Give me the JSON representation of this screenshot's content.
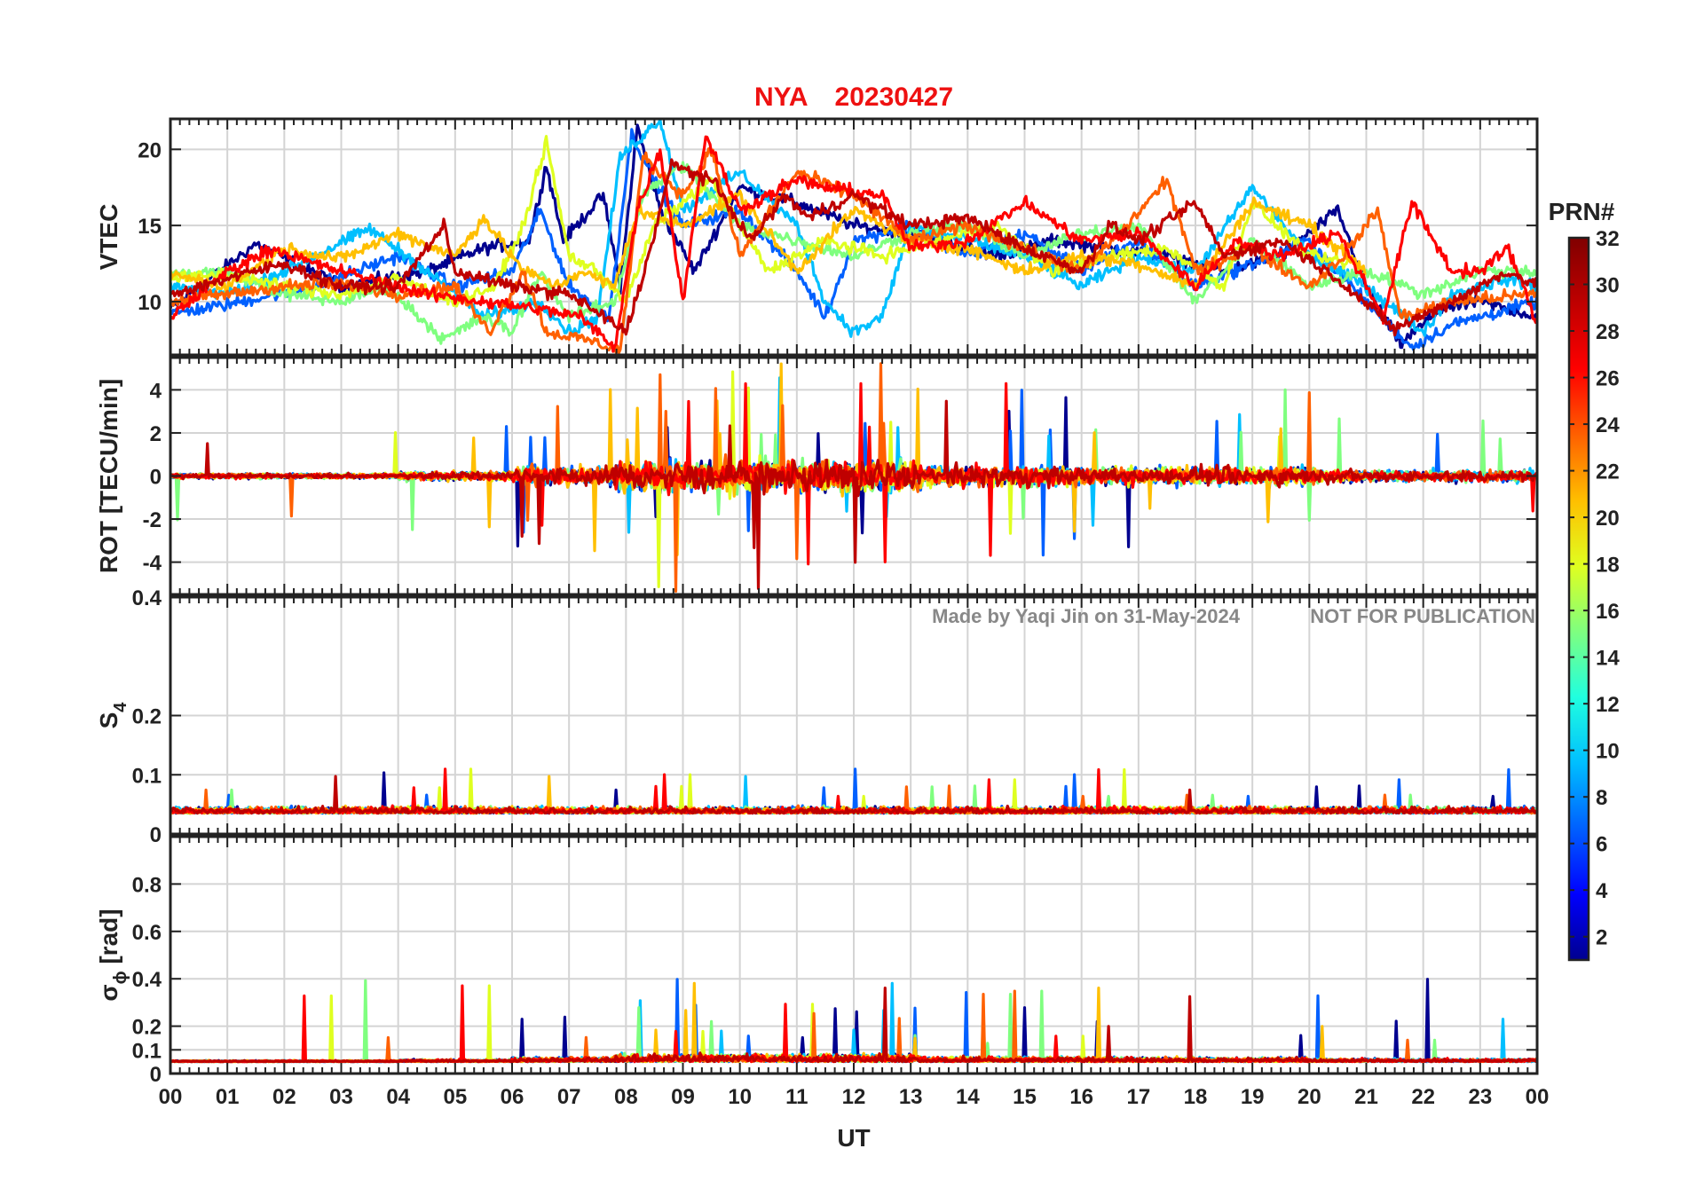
{
  "chart_data": {
    "type": "line",
    "title_station": "NYA",
    "title_date": "20230427",
    "xlabel": "UT",
    "x_range": [
      0,
      24
    ],
    "x_tick_labels": [
      "00",
      "01",
      "02",
      "03",
      "04",
      "05",
      "06",
      "07",
      "08",
      "09",
      "10",
      "11",
      "12",
      "13",
      "14",
      "15",
      "16",
      "17",
      "18",
      "19",
      "20",
      "21",
      "22",
      "23",
      "00"
    ],
    "grid": true,
    "watermark_left": "Made by Yaqi Jin on 31-May-2024",
    "watermark_right": "NOT FOR PUBLICATION",
    "colorbar": {
      "label": "PRN#",
      "range": [
        1,
        32
      ],
      "colormap": "jet",
      "ticks": [
        "2",
        "4",
        "6",
        "8",
        "10",
        "12",
        "14",
        "16",
        "18",
        "20",
        "22",
        "24",
        "26",
        "28",
        "30",
        "32"
      ]
    },
    "panels": [
      {
        "id": "vtec",
        "ylabel": "VTEC",
        "ylim": [
          6.5,
          22
        ],
        "yticks": [
          10,
          15,
          20
        ],
        "ytick_labels": [
          "10",
          "15",
          "20"
        ]
      },
      {
        "id": "rot",
        "ylabel": "ROT [TECU/min]",
        "ylim": [
          -5.5,
          5.5
        ],
        "yticks": [
          -4,
          -2,
          0,
          2,
          4
        ],
        "ytick_labels": [
          "-4",
          "-2",
          "0",
          "2",
          "4"
        ]
      },
      {
        "id": "s4",
        "ylabel_main": "S",
        "ylabel_sub": "4",
        "ylim": [
          0,
          0.4
        ],
        "yticks": [
          0,
          0.1,
          0.2,
          0.4
        ],
        "ytick_labels": [
          "0",
          "0.1",
          "0.2",
          "0.4"
        ]
      },
      {
        "id": "sigma",
        "ylabel_main": "σ",
        "ylabel_sub": "ϕ",
        "ylabel_unit": " [rad]",
        "ylim": [
          0,
          1.0
        ],
        "yticks": [
          0,
          0.1,
          0.2,
          0.4,
          0.6,
          0.8
        ],
        "ytick_labels": [
          "0",
          "0.1",
          "0.2",
          "0.4",
          "0.6",
          "0.8"
        ]
      }
    ],
    "series_colors": [
      "#00008f",
      "#0000ff",
      "#0060ff",
      "#00bfff",
      "#20ffdf",
      "#7fff7f",
      "#dfff20",
      "#ffbf00",
      "#ff6000",
      "#ff0000",
      "#bf0000",
      "#800000"
    ],
    "series": [
      {
        "name": "",
        "prn": 3,
        "vtec": [
          [
            0,
            9.5
          ],
          [
            1.5,
            13.8
          ],
          [
            3,
            11
          ],
          [
            4.5,
            12
          ],
          [
            5.5,
            13.5
          ],
          [
            6.3,
            14
          ],
          [
            6.6,
            19
          ],
          [
            6.9,
            14
          ],
          [
            7.6,
            17
          ],
          [
            7.9,
            11
          ],
          [
            8.2,
            21.5
          ],
          [
            8.6,
            16
          ],
          [
            9.2,
            12
          ],
          [
            10,
            17.5
          ],
          [
            11,
            16.5
          ],
          [
            12,
            15
          ],
          [
            13,
            14.5
          ],
          [
            14.5,
            13
          ],
          [
            15.5,
            14
          ],
          [
            16.5,
            13.5
          ],
          [
            17.5,
            13
          ],
          [
            18.5,
            12
          ],
          [
            19.5,
            13
          ],
          [
            20.5,
            16
          ],
          [
            21,
            11
          ],
          [
            21.6,
            7.2
          ],
          [
            22.3,
            9.5
          ],
          [
            23,
            10
          ],
          [
            24,
            9
          ]
        ]
      },
      {
        "name": "",
        "prn": 7,
        "vtec": [
          [
            0,
            9.2
          ],
          [
            1,
            9.8
          ],
          [
            2.5,
            11
          ],
          [
            4,
            13
          ],
          [
            5,
            11
          ],
          [
            6,
            12
          ],
          [
            6.5,
            16
          ],
          [
            7,
            11
          ],
          [
            7.7,
            9
          ],
          [
            8.1,
            21
          ],
          [
            8.5,
            18
          ],
          [
            9,
            15
          ],
          [
            10,
            16
          ],
          [
            11,
            12
          ],
          [
            11.5,
            9
          ],
          [
            12,
            14
          ],
          [
            13,
            15
          ],
          [
            14,
            13
          ],
          [
            15,
            14.5
          ],
          [
            16,
            12
          ],
          [
            17,
            14
          ],
          [
            18,
            11
          ],
          [
            19,
            12.5
          ],
          [
            20,
            14
          ],
          [
            21,
            10
          ],
          [
            21.8,
            7
          ],
          [
            22.5,
            8.5
          ],
          [
            23.5,
            9.5
          ],
          [
            24,
            10
          ]
        ]
      },
      {
        "name": "",
        "prn": 11,
        "vtec": [
          [
            0,
            11
          ],
          [
            1,
            10.5
          ],
          [
            2,
            12
          ],
          [
            3.5,
            14.8
          ],
          [
            4.5,
            12
          ],
          [
            5.5,
            9
          ],
          [
            6.5,
            10
          ],
          [
            7,
            8
          ],
          [
            7.5,
            9
          ],
          [
            7.9,
            19.5
          ],
          [
            8.6,
            22
          ],
          [
            9,
            16
          ],
          [
            10,
            18.5
          ],
          [
            11,
            15
          ],
          [
            11.5,
            10
          ],
          [
            12,
            8
          ],
          [
            12.5,
            9
          ],
          [
            13,
            15
          ],
          [
            14,
            14
          ],
          [
            15,
            13
          ],
          [
            16,
            11
          ],
          [
            17,
            13
          ],
          [
            18,
            12
          ],
          [
            19,
            17.5
          ],
          [
            20,
            13
          ],
          [
            21,
            11
          ],
          [
            22,
            8
          ],
          [
            22.5,
            10.5
          ],
          [
            23.5,
            11.5
          ],
          [
            24,
            11
          ]
        ]
      },
      {
        "name": "",
        "prn": 15,
        "vtec": [
          [
            0,
            11.8
          ],
          [
            1,
            12
          ],
          [
            2,
            10.5
          ],
          [
            3,
            10
          ],
          [
            3.8,
            11
          ],
          [
            4.8,
            7.5
          ],
          [
            5.5,
            9
          ],
          [
            6,
            8
          ],
          [
            6.5,
            12
          ],
          [
            7,
            9
          ],
          [
            7.8,
            10
          ],
          [
            8.3,
            17
          ],
          [
            9,
            19
          ],
          [
            10,
            15
          ],
          [
            11,
            14
          ],
          [
            12,
            13
          ],
          [
            13,
            14.5
          ],
          [
            14,
            15
          ],
          [
            15,
            13
          ],
          [
            16,
            14.5
          ],
          [
            17,
            15
          ],
          [
            18,
            10
          ],
          [
            19,
            14
          ],
          [
            20,
            11
          ],
          [
            21,
            12
          ],
          [
            22,
            10.5
          ],
          [
            23,
            12
          ],
          [
            24,
            12
          ]
        ]
      },
      {
        "name": "",
        "prn": 18,
        "vtec": [
          [
            0,
            11.5
          ],
          [
            1,
            11.8
          ],
          [
            2,
            11
          ],
          [
            3,
            10.5
          ],
          [
            4,
            11.5
          ],
          [
            5,
            10
          ],
          [
            5.7,
            11
          ],
          [
            6.2,
            15
          ],
          [
            6.6,
            20.5
          ],
          [
            7,
            13
          ],
          [
            7.5,
            12
          ],
          [
            8,
            10
          ],
          [
            8.5,
            15
          ],
          [
            9.5,
            18
          ],
          [
            10.5,
            12
          ],
          [
            11.5,
            14
          ],
          [
            12.5,
            13
          ],
          [
            13.5,
            14
          ],
          [
            14.5,
            15
          ],
          [
            15.5,
            12
          ],
          [
            16.5,
            13
          ],
          [
            17.5,
            13.5
          ],
          [
            18.5,
            11
          ],
          [
            19,
            16.5
          ],
          [
            20,
            13
          ],
          [
            20.7,
            12.5
          ]
        ]
      },
      {
        "name": "",
        "prn": 21,
        "vtec": [
          [
            0,
            11.8
          ],
          [
            1,
            11
          ],
          [
            2,
            13.5
          ],
          [
            3,
            12.8
          ],
          [
            4,
            14.5
          ],
          [
            5,
            13
          ],
          [
            5.5,
            15.5
          ],
          [
            6.2,
            12
          ],
          [
            6.8,
            11
          ],
          [
            7.2,
            12
          ],
          [
            7.8,
            11
          ],
          [
            8.2,
            16
          ],
          [
            9,
            15
          ],
          [
            10,
            17
          ],
          [
            11,
            12
          ],
          [
            12,
            16
          ],
          [
            13,
            14
          ],
          [
            14,
            13.5
          ],
          [
            15,
            12
          ],
          [
            16,
            13
          ],
          [
            17,
            12.5
          ],
          [
            18,
            11
          ],
          [
            19,
            16.5
          ],
          [
            20,
            15
          ],
          [
            21,
            12
          ]
        ]
      },
      {
        "name": "",
        "prn": 24,
        "vtec": [
          [
            0,
            10
          ],
          [
            1,
            10.5
          ],
          [
            2,
            11
          ],
          [
            3,
            11.2
          ],
          [
            4,
            10.5
          ],
          [
            5,
            11
          ],
          [
            5.6,
            8
          ],
          [
            6.2,
            12
          ],
          [
            6.6,
            8
          ],
          [
            7.3,
            7.5
          ],
          [
            7.9,
            6.8
          ],
          [
            8.3,
            19.5
          ],
          [
            9,
            17
          ],
          [
            9.5,
            20
          ],
          [
            10,
            13
          ],
          [
            11,
            18.5
          ],
          [
            12,
            17
          ],
          [
            13,
            14
          ],
          [
            14,
            15
          ],
          [
            15,
            13.5
          ],
          [
            16,
            12
          ],
          [
            16.8,
            15
          ],
          [
            17.5,
            18
          ],
          [
            18,
            12
          ],
          [
            19,
            13.5
          ],
          [
            20,
            11
          ],
          [
            20.6,
            13
          ],
          [
            21.2,
            16
          ],
          [
            21.6,
            9
          ],
          [
            22.5,
            10
          ],
          [
            24,
            10.5
          ]
        ]
      },
      {
        "name": "",
        "prn": 27,
        "vtec": [
          [
            0,
            9
          ],
          [
            1,
            12
          ],
          [
            1.8,
            13.5
          ],
          [
            2.5,
            12.5
          ],
          [
            3.5,
            11.5
          ],
          [
            4.5,
            10.5
          ],
          [
            5.5,
            10
          ],
          [
            6.5,
            9.5
          ],
          [
            7.2,
            9
          ],
          [
            7.8,
            7
          ],
          [
            8.2,
            16
          ],
          [
            8.6,
            20
          ],
          [
            9,
            10
          ],
          [
            9.4,
            21
          ],
          [
            10,
            16
          ],
          [
            11,
            18
          ],
          [
            11.5,
            17.5
          ],
          [
            12.5,
            17
          ],
          [
            13,
            13.5
          ],
          [
            14,
            14
          ],
          [
            15,
            16.5
          ],
          [
            16,
            14
          ],
          [
            17,
            14.5
          ],
          [
            18,
            11
          ],
          [
            18.7,
            14
          ],
          [
            19.5,
            13
          ],
          [
            20.5,
            14.5
          ],
          [
            21.3,
            9
          ],
          [
            21.8,
            16.5
          ],
          [
            22.5,
            12
          ],
          [
            23,
            12
          ],
          [
            23.5,
            13.5
          ],
          [
            24,
            8.5
          ]
        ]
      },
      {
        "name": "",
        "prn": 30,
        "vtec": [
          [
            0,
            10.5
          ],
          [
            1,
            11.5
          ],
          [
            2,
            12.5
          ],
          [
            3,
            11
          ],
          [
            4,
            11
          ],
          [
            4.8,
            15
          ],
          [
            5,
            12
          ],
          [
            6,
            11
          ],
          [
            7,
            10.5
          ],
          [
            7.6,
            9
          ],
          [
            8,
            8
          ],
          [
            8.4,
            13
          ],
          [
            8.8,
            19
          ],
          [
            9.5,
            18
          ],
          [
            10.2,
            14
          ],
          [
            10.8,
            17
          ],
          [
            11.2,
            15.5
          ],
          [
            12,
            17
          ],
          [
            13,
            15
          ],
          [
            14,
            15.5
          ],
          [
            15,
            13.5
          ],
          [
            16,
            12
          ],
          [
            16.5,
            15
          ],
          [
            17,
            14
          ],
          [
            18,
            16.5
          ],
          [
            18.5,
            13
          ],
          [
            19.5,
            14
          ],
          [
            20.5,
            11.5
          ],
          [
            21.5,
            8.2
          ],
          [
            22.5,
            10
          ],
          [
            23.5,
            12
          ],
          [
            24,
            11
          ]
        ]
      }
    ]
  }
}
